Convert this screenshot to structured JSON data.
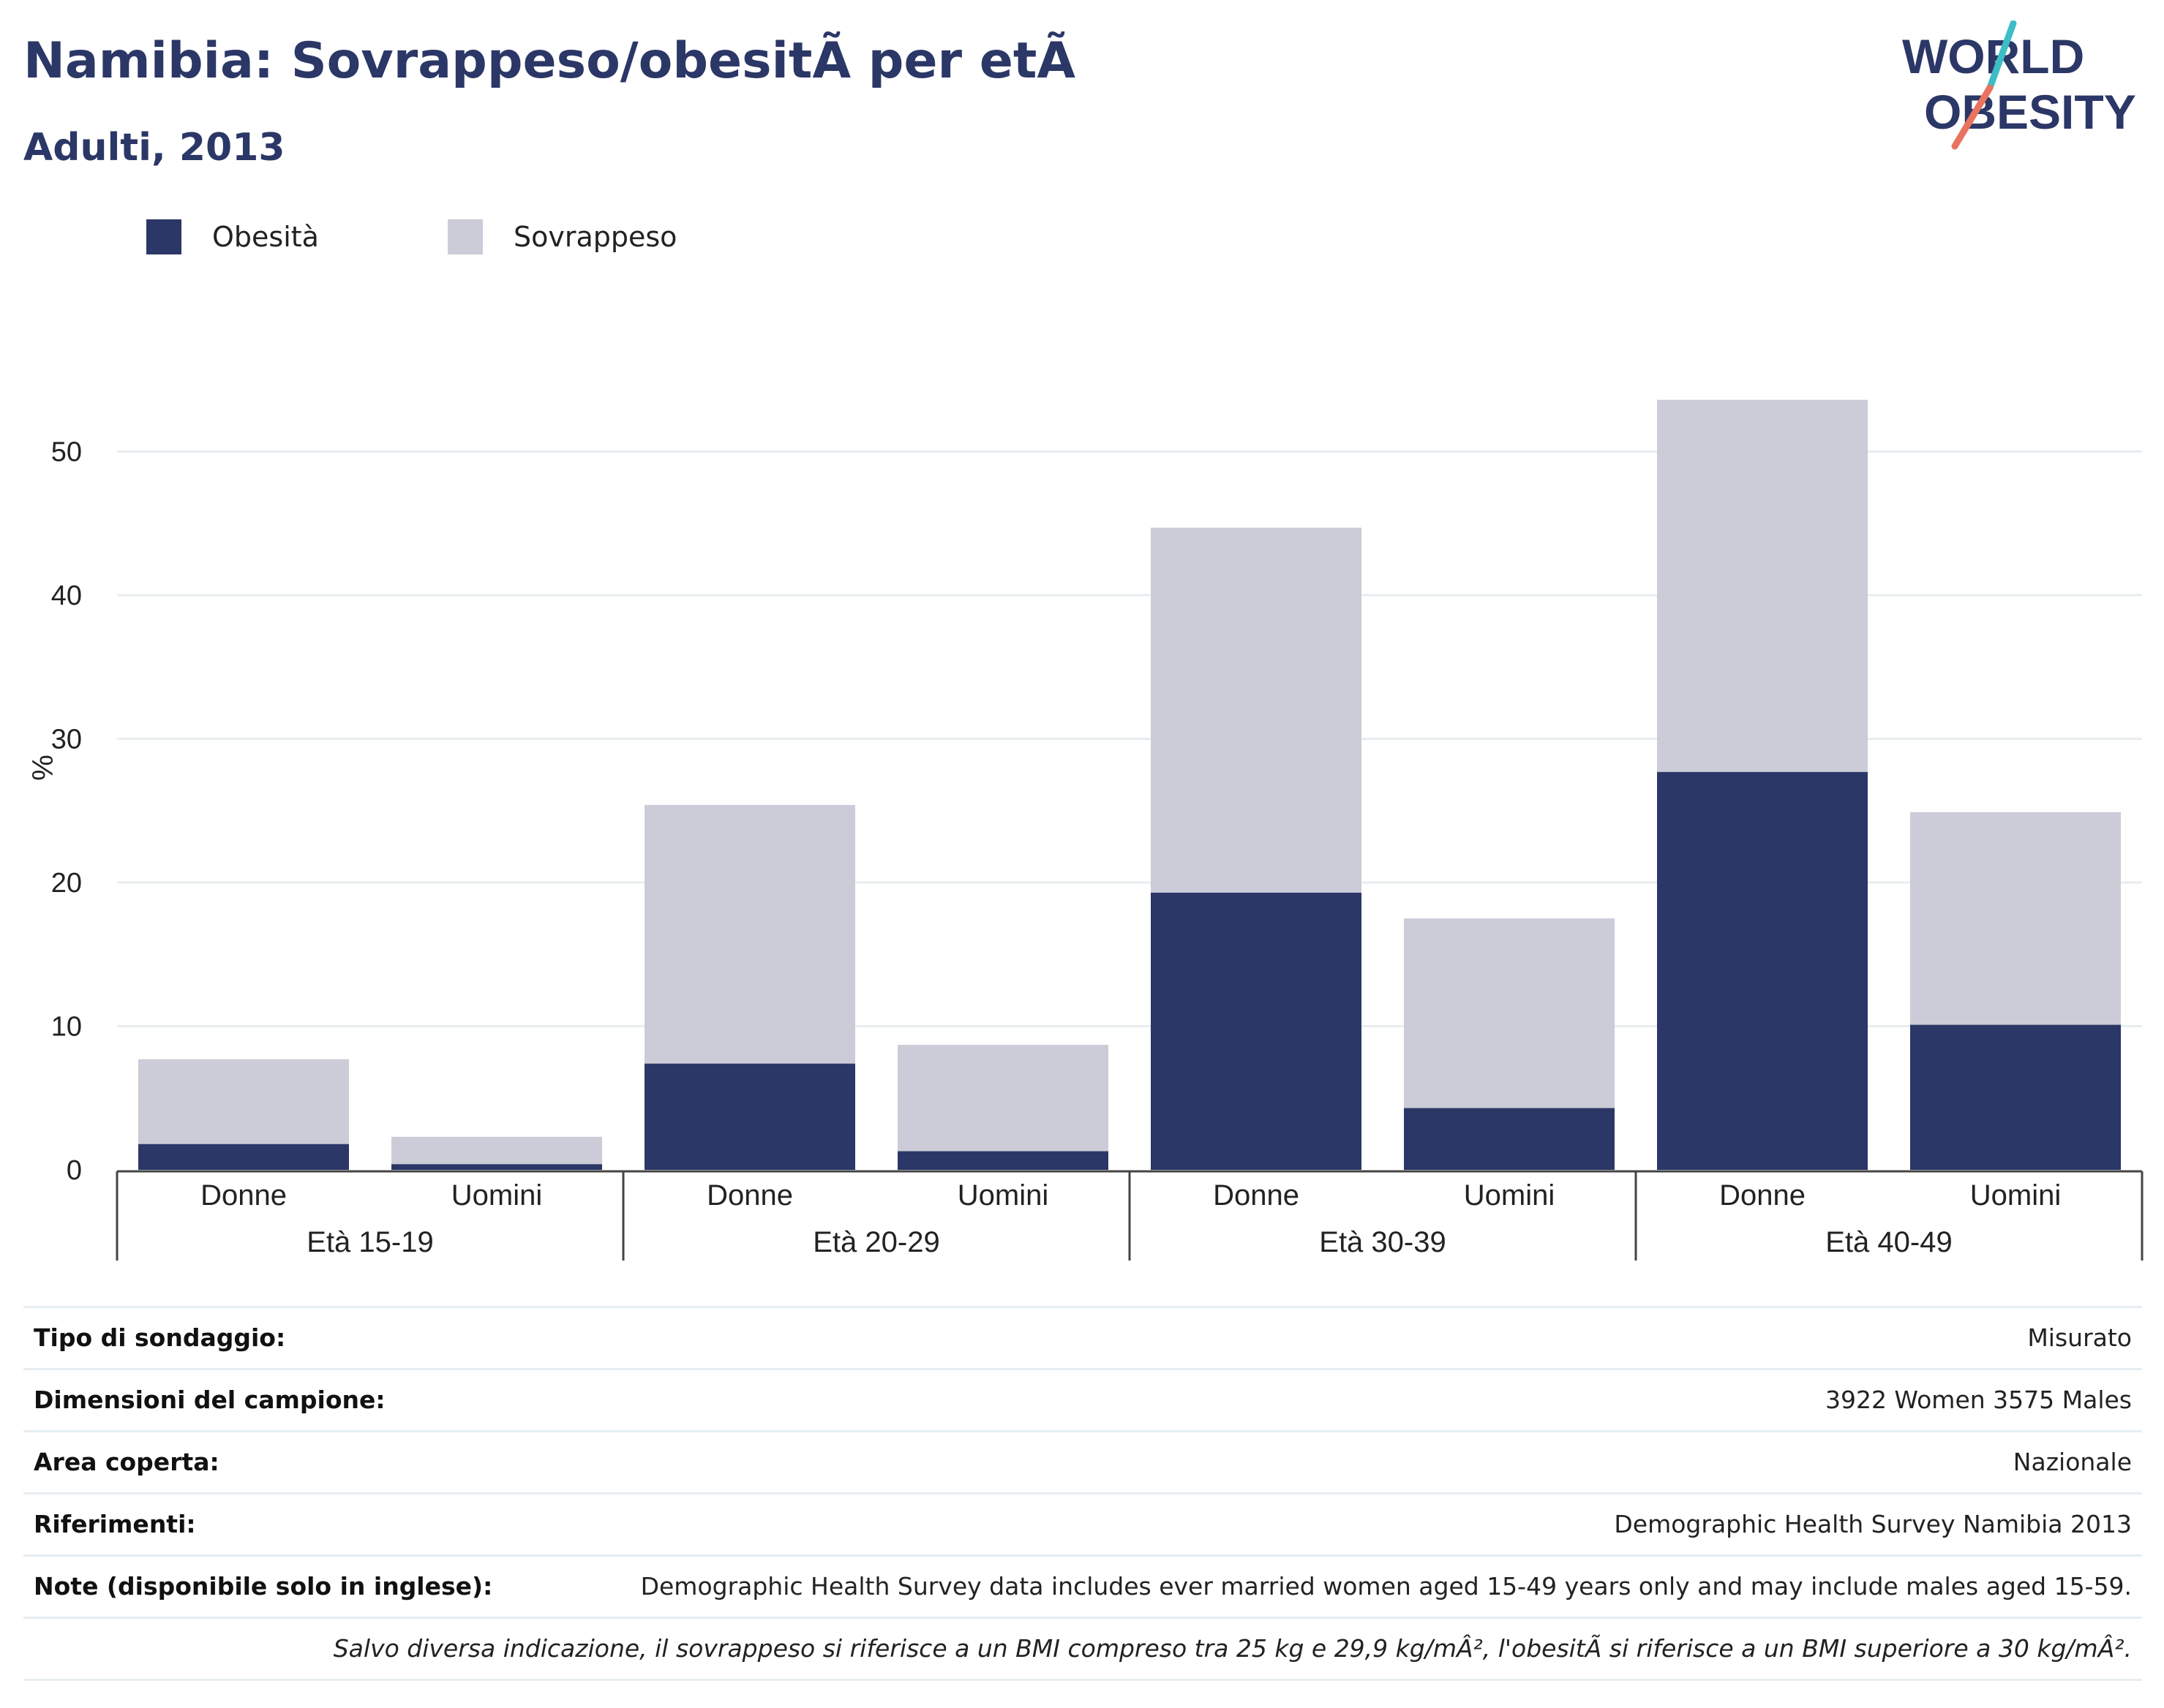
{
  "header": {
    "title": "Namibia: Sovrappeso/obesitÃ  per etÃ",
    "subtitle": "Adulti, 2013"
  },
  "logo": {
    "line1": "WORLD",
    "line2": "OBESITY",
    "accent_teal": "#3dbdc6",
    "accent_coral": "#e8735f",
    "text_color": "#2b3766"
  },
  "colors": {
    "obesity": "#2b3766",
    "overweight": "#cbccd7",
    "grid": "#e8edf0",
    "axis": "#444444"
  },
  "chart_data": {
    "type": "bar",
    "stacked": true,
    "ylabel": "%",
    "ylim": [
      0,
      57
    ],
    "yticks": [
      0,
      10,
      20,
      30,
      40,
      50
    ],
    "grid": true,
    "legend_position": "top-left",
    "groups": [
      {
        "label": "Età 15-19",
        "categories": [
          "Donne",
          "Uomini"
        ]
      },
      {
        "label": "Età 20-29",
        "categories": [
          "Donne",
          "Uomini"
        ]
      },
      {
        "label": "Età 30-39",
        "categories": [
          "Donne",
          "Uomini"
        ]
      },
      {
        "label": "Età 40-49",
        "categories": [
          "Donne",
          "Uomini"
        ]
      }
    ],
    "series": [
      {
        "name": "Obesità",
        "values": [
          1.8,
          0.4,
          7.4,
          1.3,
          19.3,
          4.3,
          27.7,
          10.1
        ]
      },
      {
        "name": "Sovrappeso",
        "values": [
          5.9,
          1.9,
          18.0,
          7.4,
          25.4,
          13.2,
          25.9,
          14.8
        ]
      }
    ]
  },
  "info": {
    "rows": [
      {
        "key": "Tipo di sondaggio:",
        "value": "Misurato"
      },
      {
        "key": "Dimensioni del campione:",
        "value": "3922 Women 3575 Males"
      },
      {
        "key": "Area coperta:",
        "value": "Nazionale"
      },
      {
        "key": "Riferimenti:",
        "value": "Demographic Health Survey Namibia 2013"
      },
      {
        "key": "Note (disponibile solo in inglese):",
        "value": "Demographic Health Survey data includes ever married women aged 15-49 years only and may include males aged 15-59."
      }
    ],
    "footnote": "Salvo diversa indicazione, il sovrappeso si riferisce a un BMI compreso tra 25 kg e 29,9 kg/mÂ², l'obesitÃ  si riferisce a un BMI superiore a 30 kg/mÂ²."
  }
}
